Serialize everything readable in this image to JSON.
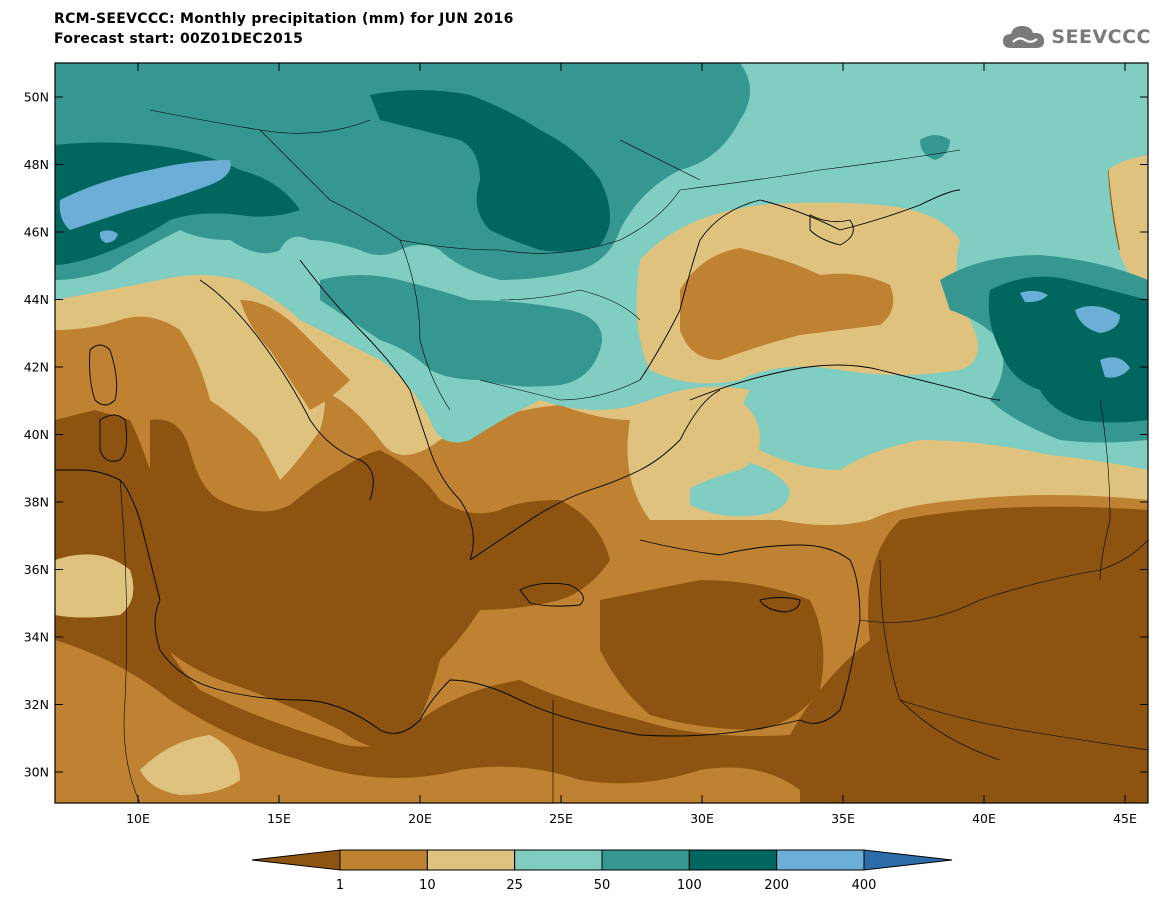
{
  "title": {
    "line1": "RCM-SEEVCCC: Monthly precipitation (mm) for JUN 2016",
    "line2": "Forecast start: 00Z01DEC2015"
  },
  "logo": {
    "icon": "cloud-icon",
    "text": "SEEVCCC"
  },
  "map": {
    "lat_labels": [
      "50N",
      "48N",
      "46N",
      "44N",
      "42N",
      "40N",
      "38N",
      "36N",
      "34N",
      "32N",
      "30N"
    ],
    "lon_labels": [
      "10E",
      "15E",
      "20E",
      "25E",
      "30E",
      "35E",
      "40E",
      "45E"
    ],
    "palette": {
      "lt1": "#8C5410",
      "b1_10": "#BF8232",
      "b10_25": "#DFC27E",
      "b25_50": "#80CDC1",
      "b50_100": "#35978F",
      "b100_200": "#01665E",
      "b200_400": "#6BAED6",
      "gt400": "#2B6DA8"
    }
  },
  "colorbar": {
    "labels": [
      "1",
      "10",
      "25",
      "50",
      "100",
      "200",
      "400"
    ],
    "colors": [
      "#8C5410",
      "#BF8232",
      "#DFC27E",
      "#80CDC1",
      "#35978F",
      "#01665E",
      "#6BAED6",
      "#2B6DA8"
    ]
  }
}
